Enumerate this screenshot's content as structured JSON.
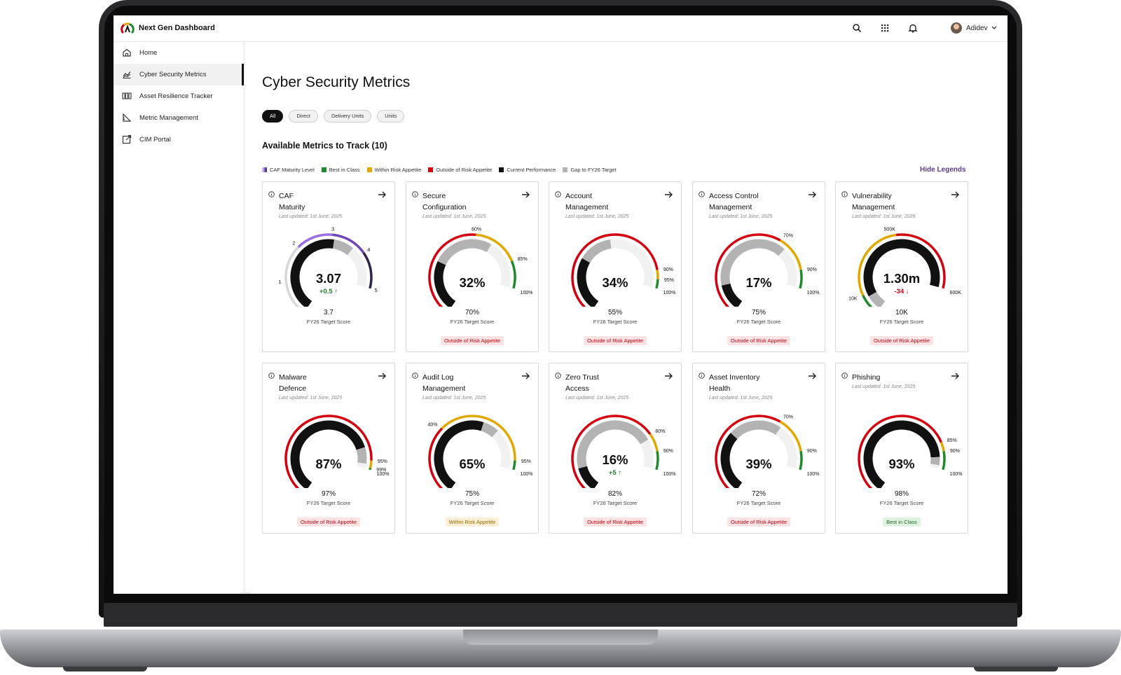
{
  "app": {
    "title": "Next Gen Dashboard",
    "user_name": "Adidev"
  },
  "sidebar": {
    "items": [
      {
        "label": "Home",
        "icon": "home-icon"
      },
      {
        "label": "Cyber Security Metrics",
        "icon": "chart-icon"
      },
      {
        "label": "Asset Resilience Tracker",
        "icon": "columns-icon"
      },
      {
        "label": "Metric Management",
        "icon": "ruler-icon"
      },
      {
        "label": "CIM Portal",
        "icon": "external-link-icon"
      }
    ],
    "active_index": 1
  },
  "main": {
    "page_title": "Cyber Security Metrics",
    "filters": [
      "All",
      "Direct",
      "Delivery Units",
      "Units"
    ],
    "active_filter": "All",
    "section_title": "Available Metrics to Track (10)",
    "hide_legends": "Hide Legends",
    "legend": [
      {
        "label": "CAF Maturity Level",
        "color": "#8a70c8"
      },
      {
        "label": "Best in Class",
        "color": "#1f8a2b"
      },
      {
        "label": "Within Risk Appetite",
        "color": "#e0a800"
      },
      {
        "label": "Outside of Risk Appetite",
        "color": "#d4000f"
      },
      {
        "label": "Current Performance",
        "color": "#111111"
      },
      {
        "label": "Gap to FY26 Target",
        "color": "#b3b3b3"
      }
    ]
  },
  "colors": {
    "red": "#d4000f",
    "amber": "#e0a800",
    "green": "#1f8a2b",
    "current": "#111111",
    "gap": "#b3b3b3",
    "purple": "#8a5ad8",
    "track": "#e9e9e9"
  },
  "cards": [
    {
      "title_lines": [
        "CAF",
        "Maturity"
      ],
      "updated": "Last updated: 1st June, 2025",
      "value": "3.07",
      "delta": "+0.5 ↑",
      "delta_dir": "up",
      "target": "3.7",
      "target_label": "FY26 Target Score",
      "badge": "",
      "badge_tone": "",
      "gauge": {
        "kind": "caf",
        "max": 5,
        "current": 3.07,
        "target": 3.7,
        "bands": [],
        "ticks": [
          "0",
          "1",
          "2",
          "3",
          "4",
          "5"
        ]
      }
    },
    {
      "title_lines": [
        "Secure",
        "Configuration"
      ],
      "updated": "Last updated: 1st June, 2025",
      "value": "32%",
      "delta": "",
      "delta_dir": "",
      "target": "70%",
      "target_label": "FY26 Target Score",
      "badge": "Outside of Risk Appetite",
      "badge_tone": "red",
      "gauge": {
        "kind": "pct",
        "current": 0.32,
        "target": 0.7,
        "bands": [
          [
            "red",
            0,
            0.6
          ],
          [
            "amber",
            0.6,
            0.85
          ],
          [
            "green",
            0.85,
            1
          ]
        ],
        "ticks": [
          [
            "0%",
            0
          ],
          [
            "60%",
            0.6
          ],
          [
            "85%",
            0.85
          ],
          [
            "100%",
            1
          ]
        ]
      }
    },
    {
      "title_lines": [
        "Account",
        "Management"
      ],
      "updated": "Last updated: 1st June, 2025",
      "value": "34%",
      "delta": "",
      "delta_dir": "",
      "target": "55%",
      "target_label": "FY26 Target Score",
      "badge": "Outside of Risk Appetite",
      "badge_tone": "red",
      "gauge": {
        "kind": "pct",
        "current": 0.34,
        "target": 0.55,
        "bands": [
          [
            "red",
            0,
            0.9
          ],
          [
            "amber",
            0.9,
            0.95
          ],
          [
            "green",
            0.95,
            1
          ]
        ],
        "ticks": [
          [
            "0%",
            0
          ],
          [
            "90%",
            0.9
          ],
          [
            "95%",
            0.95
          ],
          [
            "100%",
            1
          ]
        ]
      }
    },
    {
      "title_lines": [
        "Access Control",
        "Management"
      ],
      "updated": "Last updated: 1st June, 2025",
      "value": "17%",
      "delta": "",
      "delta_dir": "",
      "target": "75%",
      "target_label": "FY26 Target Score",
      "badge": "Outside of Risk Appetite",
      "badge_tone": "red",
      "gauge": {
        "kind": "pct",
        "current": 0.17,
        "target": 0.75,
        "bands": [
          [
            "red",
            0,
            0.7
          ],
          [
            "amber",
            0.7,
            0.9
          ],
          [
            "green",
            0.9,
            1
          ]
        ],
        "ticks": [
          [
            "0%",
            0
          ],
          [
            "70%",
            0.7
          ],
          [
            "90%",
            0.9
          ],
          [
            "100%",
            1
          ]
        ]
      }
    },
    {
      "title_lines": [
        "Vulnerability",
        "Management"
      ],
      "updated": "Last updated: 1st June, 2025",
      "value": "1.30m",
      "delta": "-34 ↓",
      "delta_dir": "down",
      "target": "10K",
      "target_label": "FY26 Target Score",
      "badge": "Outside of Risk Appetite",
      "badge_tone": "red",
      "gauge": {
        "kind": "pct",
        "current": 1.0,
        "target": 0.1,
        "reverse": true,
        "bands": [
          [
            "green",
            0,
            0.12
          ],
          [
            "amber",
            0.12,
            0.55
          ],
          [
            "red",
            0.55,
            1
          ]
        ],
        "ticks": [
          [
            "0K",
            0
          ],
          [
            "10K",
            0.12
          ],
          [
            "500K",
            0.55
          ],
          [
            "600K",
            1
          ]
        ]
      }
    },
    {
      "title_lines": [
        "Malware",
        "Defence"
      ],
      "updated": "Last updated: 1st June, 2025",
      "value": "87%",
      "delta": "",
      "delta_dir": "",
      "target": "97%",
      "target_label": "FY26 Target Score",
      "badge": "Outside of Risk Appetite",
      "badge_tone": "red",
      "gauge": {
        "kind": "pct",
        "current": 0.87,
        "target": 0.97,
        "bands": [
          [
            "red",
            0,
            0.95
          ],
          [
            "amber",
            0.95,
            0.99
          ],
          [
            "green",
            0.99,
            1
          ]
        ],
        "ticks": [
          [
            "0%",
            0
          ],
          [
            "95%",
            0.95
          ],
          [
            "99%",
            0.99
          ],
          [
            "100%",
            1
          ]
        ]
      }
    },
    {
      "title_lines": [
        "Audit Log",
        "Management"
      ],
      "updated": "Last updated: 1st June, 2025",
      "value": "65%",
      "delta": "",
      "delta_dir": "",
      "target": "75%",
      "target_label": "FY26 Target Score",
      "badge": "Within Risk Appetite",
      "badge_tone": "amber",
      "gauge": {
        "kind": "pct",
        "current": 0.65,
        "target": 0.75,
        "bands": [
          [
            "red",
            0,
            0.4
          ],
          [
            "amber",
            0.4,
            0.95
          ],
          [
            "green",
            0.95,
            1
          ]
        ],
        "ticks": [
          [
            "0%",
            0
          ],
          [
            "40%",
            0.4
          ],
          [
            "95%",
            0.95
          ],
          [
            "100%",
            1
          ]
        ]
      }
    },
    {
      "title_lines": [
        "Zero Trust",
        "Access"
      ],
      "updated": "Last updated: 1st June, 2025",
      "value": "16%",
      "delta": "+5 ↑",
      "delta_dir": "up",
      "target": "82%",
      "target_label": "FY26 Target Score",
      "badge": "Outside of Risk Appetite",
      "badge_tone": "red",
      "gauge": {
        "kind": "pct",
        "current": 0.16,
        "target": 0.82,
        "bands": [
          [
            "red",
            0,
            0.8
          ],
          [
            "amber",
            0.8,
            0.9
          ],
          [
            "green",
            0.9,
            1
          ]
        ],
        "ticks": [
          [
            "0%",
            0
          ],
          [
            "80%",
            0.8
          ],
          [
            "90%",
            0.9
          ],
          [
            "100%",
            1
          ]
        ]
      }
    },
    {
      "title_lines": [
        "Asset Inventory",
        "Health"
      ],
      "updated": "Last updated: 1st June, 2025",
      "value": "39%",
      "delta": "",
      "delta_dir": "",
      "target": "72%",
      "target_label": "FY26 Target Score",
      "badge": "Outside of Risk Appetite",
      "badge_tone": "red",
      "gauge": {
        "kind": "pct",
        "current": 0.39,
        "target": 0.72,
        "bands": [
          [
            "red",
            0,
            0.7
          ],
          [
            "amber",
            0.7,
            0.9
          ],
          [
            "green",
            0.9,
            1
          ]
        ],
        "ticks": [
          [
            "0%",
            0
          ],
          [
            "70%",
            0.7
          ],
          [
            "90%",
            0.9
          ],
          [
            "100%",
            1
          ]
        ]
      }
    },
    {
      "title_lines": [
        "Phishing",
        ""
      ],
      "updated": "Last updated: 1st June, 2025",
      "value": "93%",
      "delta": "",
      "delta_dir": "",
      "target": "98%",
      "target_label": "FY26 Target Score",
      "badge": "Best in Class",
      "badge_tone": "green",
      "gauge": {
        "kind": "pct",
        "current": 0.93,
        "target": 0.98,
        "bands": [
          [
            "red",
            0,
            0.85
          ],
          [
            "amber",
            0.85,
            0.9
          ],
          [
            "green",
            0.9,
            1
          ]
        ],
        "ticks": [
          [
            "0%",
            0
          ],
          [
            "85%",
            0.85
          ],
          [
            "90%",
            0.9
          ],
          [
            "100%",
            1
          ]
        ]
      }
    }
  ]
}
